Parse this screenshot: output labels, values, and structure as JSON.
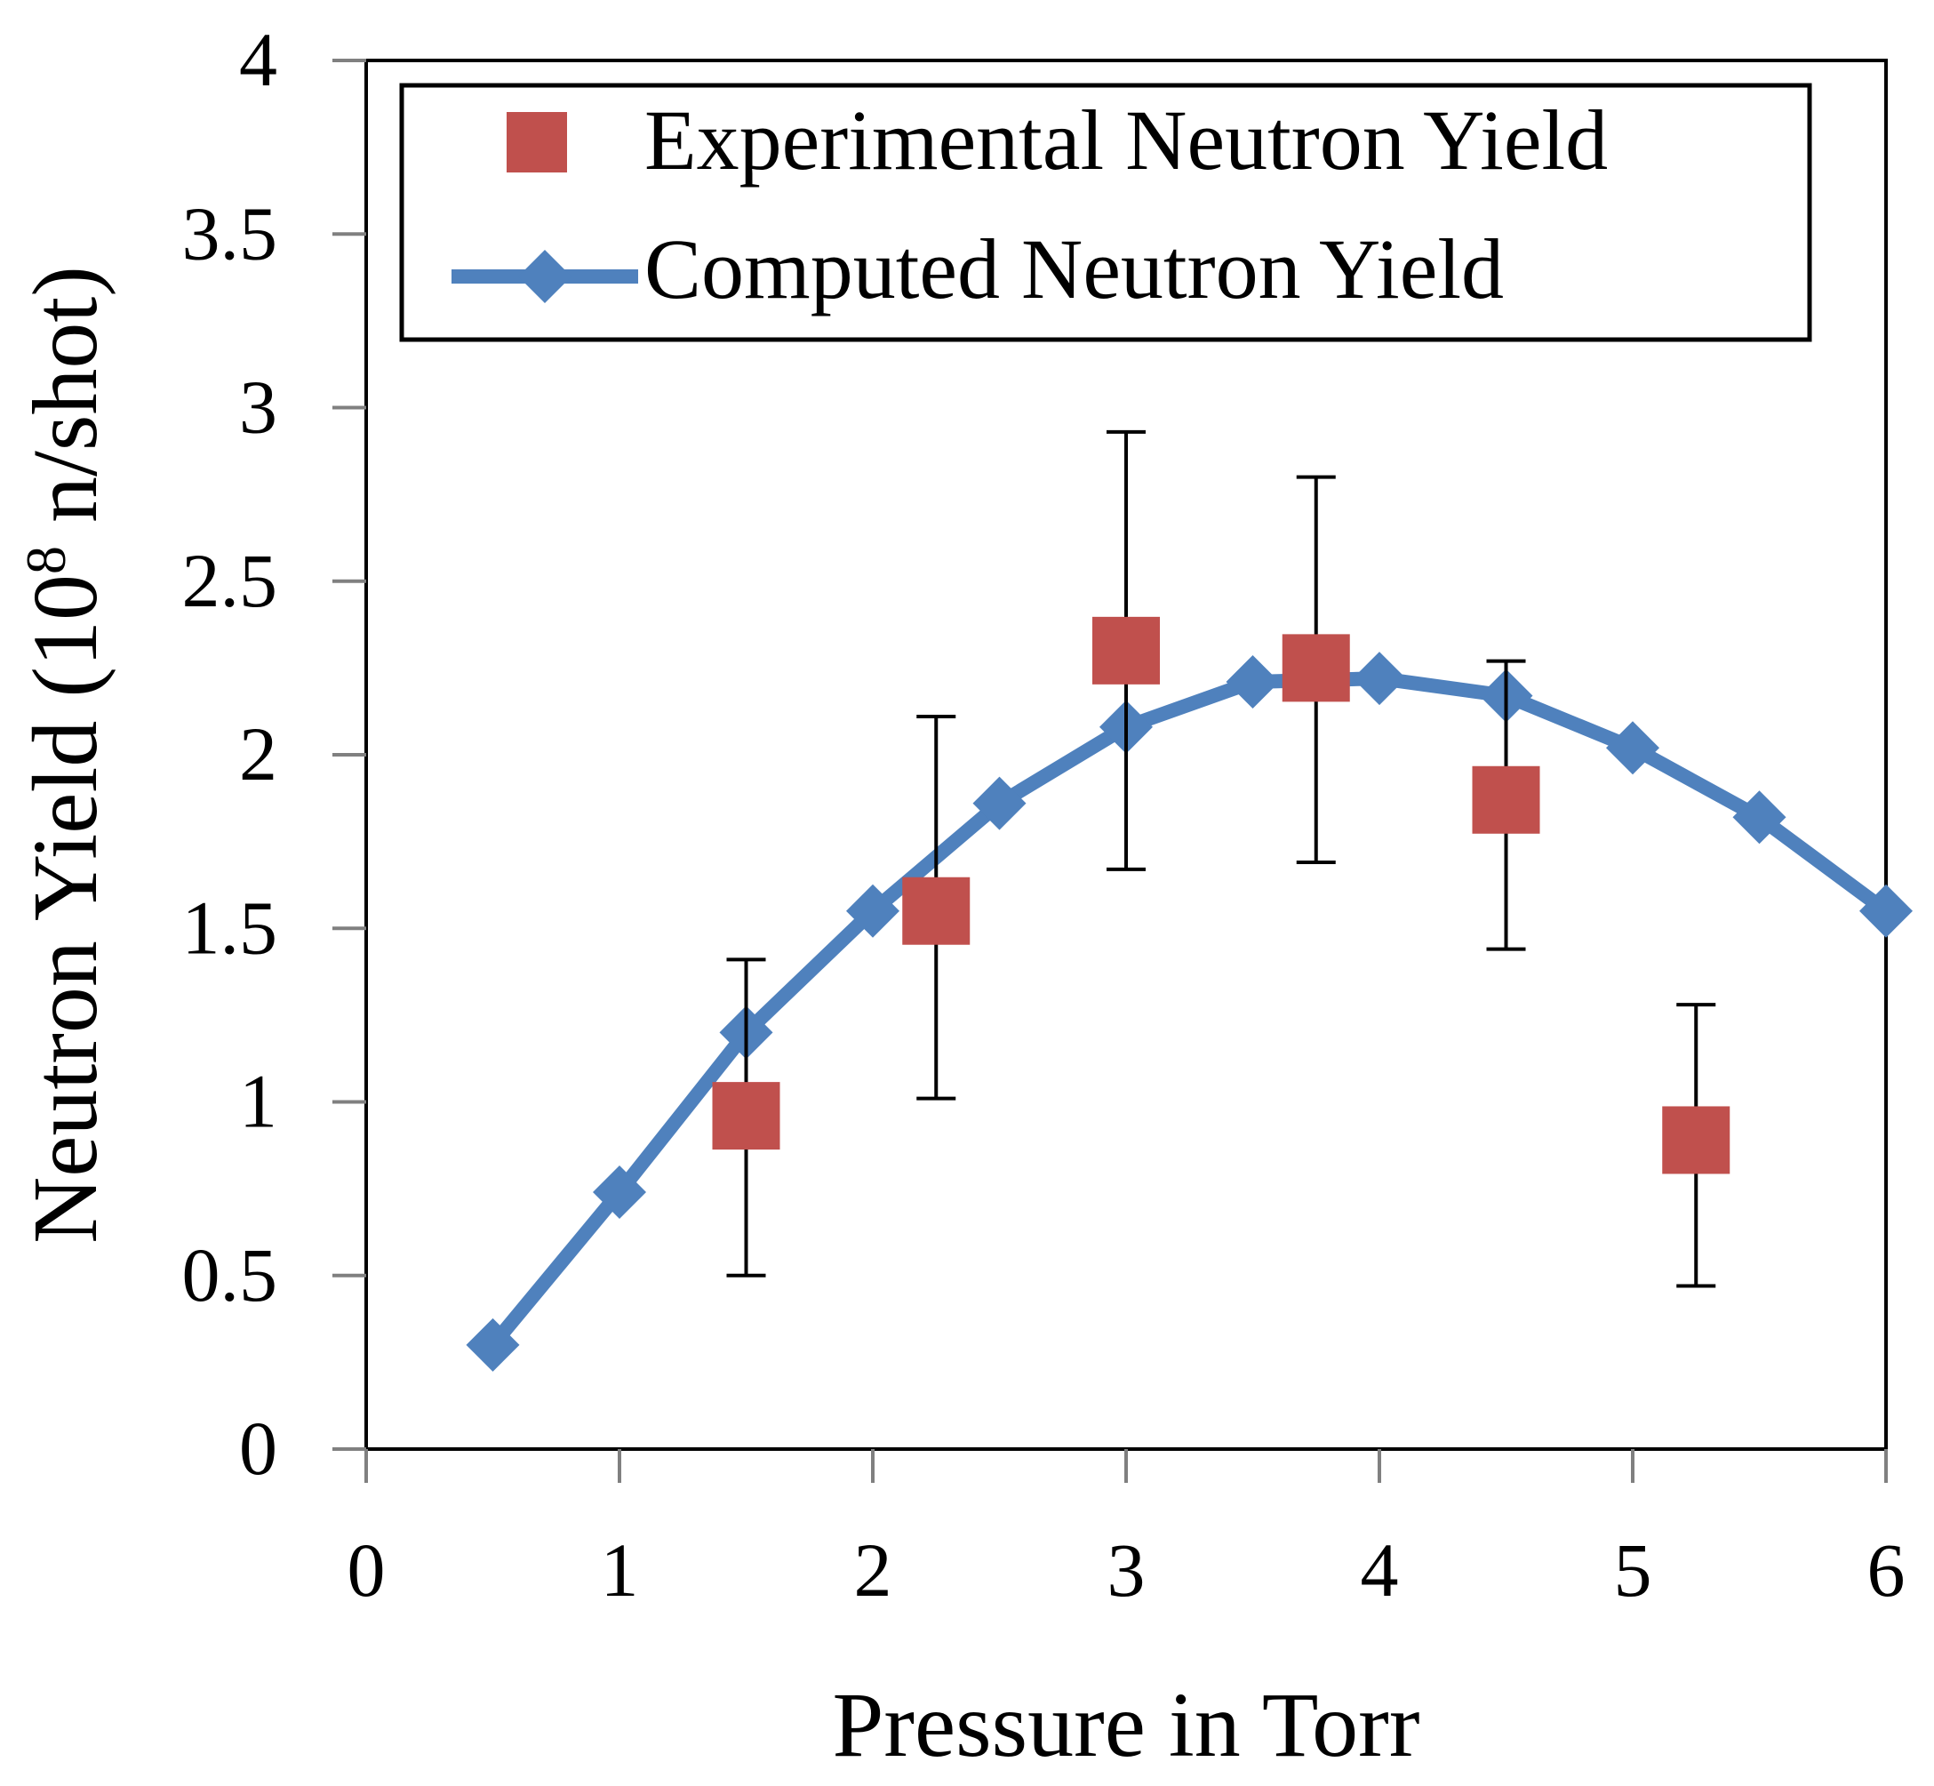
{
  "chart_data": {
    "type": "scatter",
    "title": "",
    "xlabel": "Pressure in Torr",
    "ylabel_main": "Neutron Yield (10",
    "ylabel_sup": "8",
    "ylabel_tail": " n/shot)",
    "xlim": [
      0,
      6
    ],
    "ylim": [
      0,
      4
    ],
    "x_ticks": [
      0,
      1,
      2,
      3,
      4,
      5,
      6
    ],
    "x_tick_labels": [
      "0",
      "1",
      "2",
      "3",
      "4",
      "5",
      "6"
    ],
    "y_ticks": [
      0,
      0.5,
      1,
      1.5,
      2,
      2.5,
      3,
      3.5,
      4
    ],
    "y_tick_labels": [
      "0",
      "0.5",
      "1",
      "1.5",
      "2",
      "2.5",
      "3",
      "3.5",
      "4"
    ],
    "grid": false,
    "legend_position": "top",
    "colors": {
      "experimental": "#c0504d",
      "computed": "#4f81bd",
      "axis": "#808080",
      "tick_text": "#000000",
      "label_text": "#000000"
    },
    "series": [
      {
        "name": "Experimental Neutron Yield",
        "kind": "points_with_error",
        "marker": "square",
        "x": [
          1.5,
          2.25,
          3.0,
          3.75,
          4.5,
          5.25
        ],
        "y": [
          0.96,
          1.55,
          2.3,
          2.25,
          1.87,
          0.89
        ],
        "err_low": [
          0.5,
          1.01,
          1.67,
          1.69,
          1.44,
          0.47
        ],
        "err_high": [
          1.41,
          2.11,
          2.93,
          2.8,
          2.27,
          1.28
        ]
      },
      {
        "name": "Computed Neutron Yield",
        "kind": "line",
        "marker": "diamond",
        "x": [
          0.5,
          1.0,
          1.5,
          2.0,
          2.5,
          3.0,
          3.5,
          4.0,
          4.5,
          5.0,
          5.5,
          6.0
        ],
        "y": [
          0.3,
          0.74,
          1.2,
          1.55,
          1.86,
          2.08,
          2.21,
          2.22,
          2.17,
          2.02,
          1.82,
          1.55
        ]
      }
    ]
  }
}
